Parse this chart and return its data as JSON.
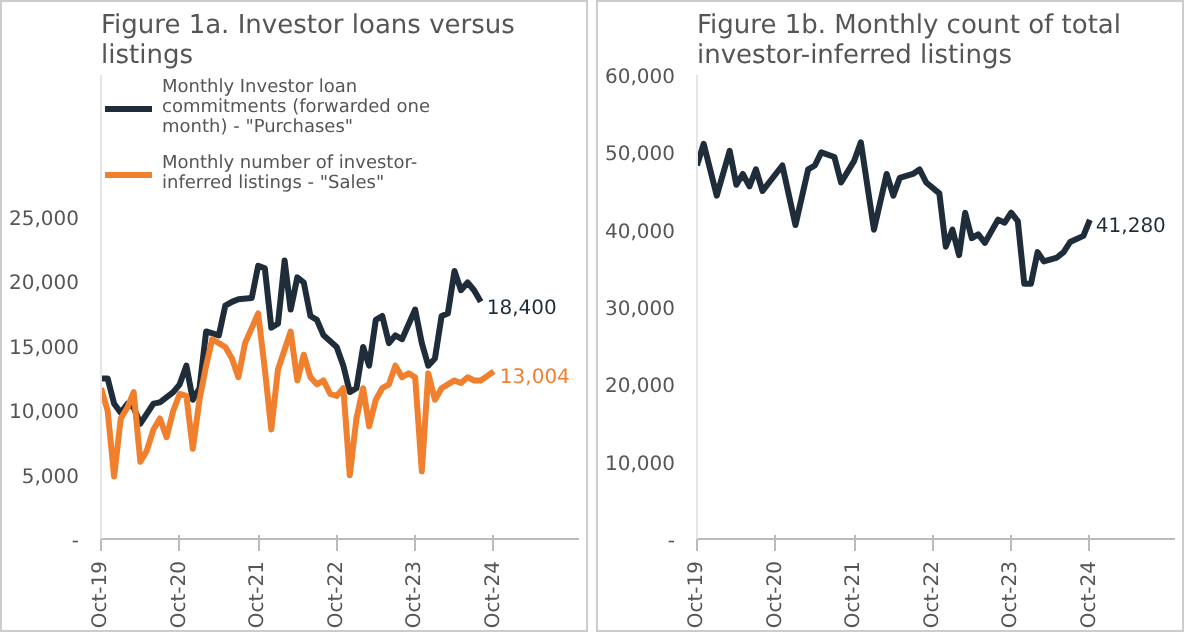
{
  "chart_data": [
    {
      "type": "line",
      "title": "Figure 1a. Investor loans versus listings",
      "legend": "top left",
      "grid": false,
      "xlim": [
        "2019-10",
        "2025-11"
      ],
      "ylim": [
        0,
        36000
      ],
      "xticks": [
        {
          "value": "2019-10",
          "label": "Oct-19"
        },
        {
          "value": "2020-10",
          "label": "Oct-20"
        },
        {
          "value": "2021-10",
          "label": "Oct-21"
        },
        {
          "value": "2022-10",
          "label": "Oct-22"
        },
        {
          "value": "2023-10",
          "label": "Oct-23"
        },
        {
          "value": "2024-10",
          "label": "Oct-24"
        }
      ],
      "yticks": [
        {
          "value": 0,
          "label": "-"
        },
        {
          "value": 5000,
          "label": "5,000"
        },
        {
          "value": 10000,
          "label": "10,000"
        },
        {
          "value": 15000,
          "label": "15,000"
        },
        {
          "value": 20000,
          "label": "20,000"
        },
        {
          "value": 25000,
          "label": "25,000"
        }
      ],
      "series": [
        {
          "name": "Monthly Investor loan commitments (forwarded one month) - \"Purchases\"",
          "color": "#1f2d3a",
          "x": [
            "2019-10",
            "2019-11",
            "2019-12",
            "2020-01",
            "2020-02",
            "2020-03",
            "2020-04",
            "2020-06",
            "2020-07",
            "2020-09",
            "2020-10",
            "2020-11",
            "2020-12",
            "2021-01",
            "2021-02",
            "2021-04",
            "2021-05",
            "2021-06",
            "2021-07",
            "2021-09",
            "2021-10",
            "2021-11",
            "2021-12",
            "2022-01",
            "2022-02",
            "2022-03",
            "2022-04",
            "2022-05",
            "2022-06",
            "2022-07",
            "2022-08",
            "2022-10",
            "2022-11",
            "2022-12",
            "2023-01",
            "2023-02",
            "2023-03",
            "2023-04",
            "2023-05",
            "2023-06",
            "2023-07",
            "2023-08",
            "2023-10",
            "2023-11",
            "2023-12",
            "2024-01",
            "2024-02",
            "2024-03",
            "2024-04",
            "2024-05",
            "2024-06",
            "2024-07",
            "2024-08"
          ],
          "values": [
            12450,
            12450,
            10500,
            9800,
            10500,
            10200,
            8950,
            10500,
            10600,
            11400,
            12000,
            13450,
            10800,
            11700,
            16100,
            15800,
            18100,
            18400,
            18600,
            18700,
            21200,
            21000,
            16400,
            16700,
            21600,
            17800,
            20300,
            19900,
            17300,
            17000,
            15800,
            14900,
            13450,
            11400,
            11700,
            14900,
            13450,
            17000,
            17300,
            15200,
            15800,
            15500,
            17800,
            15200,
            13450,
            14000,
            17300,
            17500,
            20800,
            19300,
            19900,
            19300,
            18400
          ],
          "value_labels": [
            null,
            null,
            null,
            null,
            null,
            null,
            null,
            null,
            null,
            null,
            null,
            null,
            null,
            null,
            null,
            null,
            null,
            null,
            null,
            null,
            null,
            null,
            null,
            null,
            null,
            null,
            null,
            null,
            null,
            null,
            null,
            null,
            null,
            null,
            null,
            null,
            null,
            null,
            null,
            null,
            null,
            null,
            null,
            null,
            null,
            null,
            null,
            null,
            null,
            null,
            null,
            null,
            "18,400"
          ]
        },
        {
          "name": "Monthly number of investor-inferred listings - \"Sales\"",
          "color": "#f07f2e",
          "x": [
            "2019-10",
            "2019-11",
            "2019-12",
            "2020-01",
            "2020-02",
            "2020-03",
            "2020-04",
            "2020-05",
            "2020-06",
            "2020-07",
            "2020-08",
            "2020-09",
            "2020-10",
            "2020-11",
            "2020-12",
            "2021-01",
            "2021-02",
            "2021-03",
            "2021-04",
            "2021-05",
            "2021-06",
            "2021-07",
            "2021-08",
            "2021-10",
            "2021-11",
            "2021-12",
            "2022-01",
            "2022-03",
            "2022-04",
            "2022-05",
            "2022-06",
            "2022-07",
            "2022-08",
            "2022-09",
            "2022-10",
            "2022-11",
            "2022-12",
            "2023-01",
            "2023-02",
            "2023-03",
            "2023-04",
            "2023-05",
            "2023-06",
            "2023-07",
            "2023-08",
            "2023-09",
            "2023-10",
            "2023-11",
            "2023-12",
            "2024-01",
            "2024-02",
            "2024-03",
            "2024-04",
            "2024-05",
            "2024-06",
            "2024-07",
            "2024-08",
            "2024-10"
          ],
          "values": [
            11700,
            9950,
            4850,
            9350,
            10200,
            11400,
            6000,
            6850,
            8500,
            9350,
            7900,
            9950,
            11250,
            11100,
            7000,
            10800,
            13450,
            15500,
            15200,
            14900,
            14000,
            12550,
            15200,
            17500,
            13150,
            8500,
            13150,
            16100,
            12300,
            14300,
            12550,
            12000,
            12300,
            11250,
            11100,
            11700,
            4950,
            9350,
            11700,
            8750,
            10800,
            11700,
            12000,
            13450,
            12550,
            12850,
            12550,
            5250,
            12850,
            10800,
            11700,
            12000,
            12300,
            12100,
            12550,
            12300,
            12300,
            13004
          ],
          "value_labels": [
            null,
            null,
            null,
            null,
            null,
            null,
            null,
            null,
            null,
            null,
            null,
            null,
            null,
            null,
            null,
            null,
            null,
            null,
            null,
            null,
            null,
            null,
            null,
            null,
            null,
            null,
            null,
            null,
            null,
            null,
            null,
            null,
            null,
            null,
            null,
            null,
            null,
            null,
            null,
            null,
            null,
            null,
            null,
            null,
            null,
            null,
            null,
            null,
            null,
            null,
            null,
            null,
            null,
            null,
            null,
            null,
            null,
            "13,004"
          ]
        }
      ]
    },
    {
      "type": "line",
      "title": "Figure 1b. Monthly count of total investor-inferred listings",
      "grid": false,
      "xlim": [
        "2019-10",
        "2025-11"
      ],
      "ylim": [
        0,
        60000
      ],
      "xticks": [
        {
          "value": "2019-10",
          "label": "Oct-19"
        },
        {
          "value": "2020-10",
          "label": "Oct-20"
        },
        {
          "value": "2021-10",
          "label": "Oct-21"
        },
        {
          "value": "2022-10",
          "label": "Oct-22"
        },
        {
          "value": "2023-10",
          "label": "Oct-23"
        },
        {
          "value": "2024-10",
          "label": "Oct-24"
        }
      ],
      "yticks": [
        {
          "value": 0,
          "label": "-"
        },
        {
          "value": 10000,
          "label": "10,000"
        },
        {
          "value": 20000,
          "label": "20,000"
        },
        {
          "value": 30000,
          "label": "30,000"
        },
        {
          "value": 40000,
          "label": "40,000"
        },
        {
          "value": 50000,
          "label": "50,000"
        },
        {
          "value": 60000,
          "label": "60,000"
        }
      ],
      "series": [
        {
          "color": "#1f2d3a",
          "x": [
            "2019-10",
            "2019-11",
            "2020-01",
            "2020-03",
            "2020-04",
            "2020-05",
            "2020-06",
            "2020-07",
            "2020-08",
            "2020-10",
            "2020-11",
            "2021-01",
            "2021-03",
            "2021-04",
            "2021-05",
            "2021-07",
            "2021-08",
            "2021-10",
            "2021-11",
            "2022-01",
            "2022-03",
            "2022-04",
            "2022-05",
            "2022-07",
            "2022-08",
            "2022-09",
            "2022-11",
            "2022-12",
            "2023-01",
            "2023-02",
            "2023-03",
            "2023-04",
            "2023-05",
            "2023-06",
            "2023-08",
            "2023-09",
            "2023-10",
            "2023-11",
            "2023-12",
            "2024-01",
            "2024-02",
            "2024-03",
            "2024-05",
            "2024-06",
            "2024-07",
            "2024-09",
            "2024-10"
          ],
          "values": [
            48300,
            51100,
            44400,
            50200,
            45800,
            47200,
            45600,
            47800,
            45000,
            47200,
            48300,
            40600,
            47800,
            48300,
            50000,
            49400,
            46100,
            48900,
            51300,
            40000,
            47200,
            44400,
            46700,
            47200,
            47800,
            46100,
            44700,
            37800,
            40000,
            36700,
            42200,
            38900,
            39400,
            38300,
            41300,
            40900,
            42200,
            41100,
            33000,
            33000,
            37100,
            35900,
            36400,
            37100,
            38400,
            39200,
            41280
          ],
          "value_labels": [
            null,
            null,
            null,
            null,
            null,
            null,
            null,
            null,
            null,
            null,
            null,
            null,
            null,
            null,
            null,
            null,
            null,
            null,
            null,
            null,
            null,
            null,
            null,
            null,
            null,
            null,
            null,
            null,
            null,
            null,
            null,
            null,
            null,
            null,
            null,
            null,
            null,
            null,
            null,
            null,
            null,
            null,
            null,
            null,
            null,
            null,
            "41,280"
          ]
        }
      ]
    }
  ]
}
